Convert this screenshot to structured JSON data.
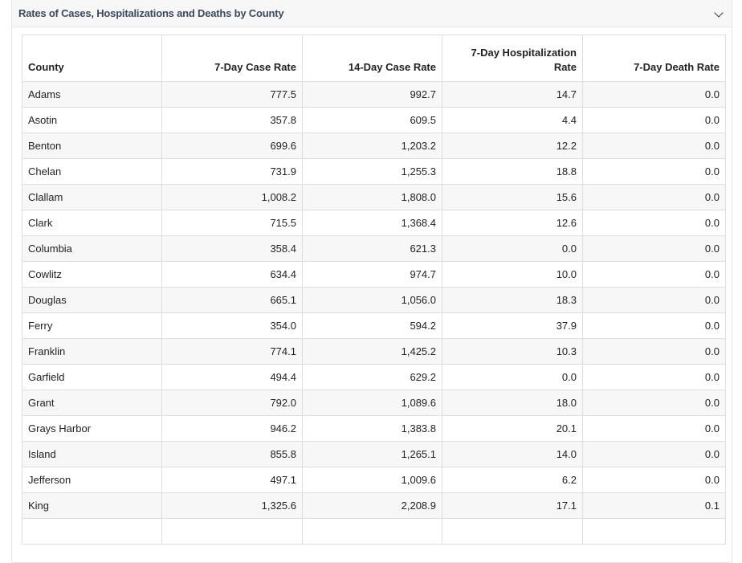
{
  "panel": {
    "title": "Rates of Cases, Hospitalizations and Deaths by County",
    "toggle_icon": "chevron-down-icon"
  },
  "table": {
    "headers": [
      "County",
      "7-Day Case Rate",
      "14-Day Case Rate",
      "7-Day Hospitalization Rate",
      "7-Day Death Rate"
    ],
    "rows": [
      [
        "Adams",
        "777.5",
        "992.7",
        "14.7",
        "0.0"
      ],
      [
        "Asotin",
        "357.8",
        "609.5",
        "4.4",
        "0.0"
      ],
      [
        "Benton",
        "699.6",
        "1,203.2",
        "12.2",
        "0.0"
      ],
      [
        "Chelan",
        "731.9",
        "1,255.3",
        "18.8",
        "0.0"
      ],
      [
        "Clallam",
        "1,008.2",
        "1,808.0",
        "15.6",
        "0.0"
      ],
      [
        "Clark",
        "715.5",
        "1,368.4",
        "12.6",
        "0.0"
      ],
      [
        "Columbia",
        "358.4",
        "621.3",
        "0.0",
        "0.0"
      ],
      [
        "Cowlitz",
        "634.4",
        "974.7",
        "10.0",
        "0.0"
      ],
      [
        "Douglas",
        "665.1",
        "1,056.0",
        "18.3",
        "0.0"
      ],
      [
        "Ferry",
        "354.0",
        "594.2",
        "37.9",
        "0.0"
      ],
      [
        "Franklin",
        "774.1",
        "1,425.2",
        "10.3",
        "0.0"
      ],
      [
        "Garfield",
        "494.4",
        "629.2",
        "0.0",
        "0.0"
      ],
      [
        "Grant",
        "792.0",
        "1,089.6",
        "18.0",
        "0.0"
      ],
      [
        "Grays Harbor",
        "946.2",
        "1,383.8",
        "20.1",
        "0.0"
      ],
      [
        "Island",
        "855.8",
        "1,265.1",
        "14.0",
        "0.0"
      ],
      [
        "Jefferson",
        "497.1",
        "1,009.6",
        "6.2",
        "0.0"
      ],
      [
        "King",
        "1,325.6",
        "2,208.9",
        "17.1",
        "0.1"
      ]
    ]
  }
}
